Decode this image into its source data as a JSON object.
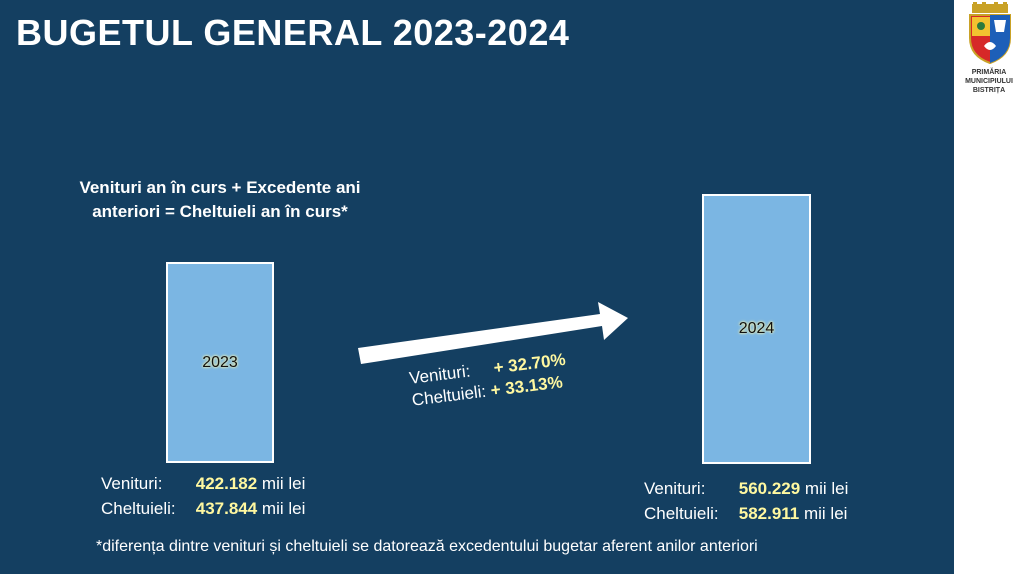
{
  "slide": {
    "title": "BUGETUL GENERAL 2023-2024",
    "equation_line1": "Venituri an în curs + Excedente ani",
    "equation_line2": "anteriori = Cheltuieli an în curs*",
    "bars": [
      {
        "year": "2023",
        "venituri": 422.182,
        "cheltuieli": 437.844
      },
      {
        "year": "2024",
        "venituri": 560.229,
        "cheltuieli": 582.911
      }
    ],
    "growth": {
      "venituri_label": "Venituri:",
      "venituri_value": "+ 32.70%",
      "cheltuieli_label": "Cheltuieli:",
      "cheltuieli_value": "+ 33.13%"
    },
    "stats_2023": {
      "venituri_label": "Venituri:",
      "venituri_value": "422.182",
      "cheltuieli_label": "Cheltuieli:",
      "cheltuieli_value": "437.844",
      "unit": "mii lei"
    },
    "stats_2024": {
      "venituri_label": "Venituri:",
      "venituri_value": "560.229",
      "cheltuieli_label": "Cheltuieli:",
      "cheltuieli_value": "582.911",
      "unit": "mii lei"
    },
    "footnote": "*diferența dintre venituri și cheltuieli se datorează excedentului bugetar aferent anilor anteriori"
  },
  "logo": {
    "line1": "PRIMĂRIA",
    "line2": "MUNICIPIULUI",
    "line3": "BISTRIȚA"
  },
  "colors": {
    "background": "#143f61",
    "bar_fill": "#7bb6e3",
    "highlight": "#fff8a0"
  }
}
